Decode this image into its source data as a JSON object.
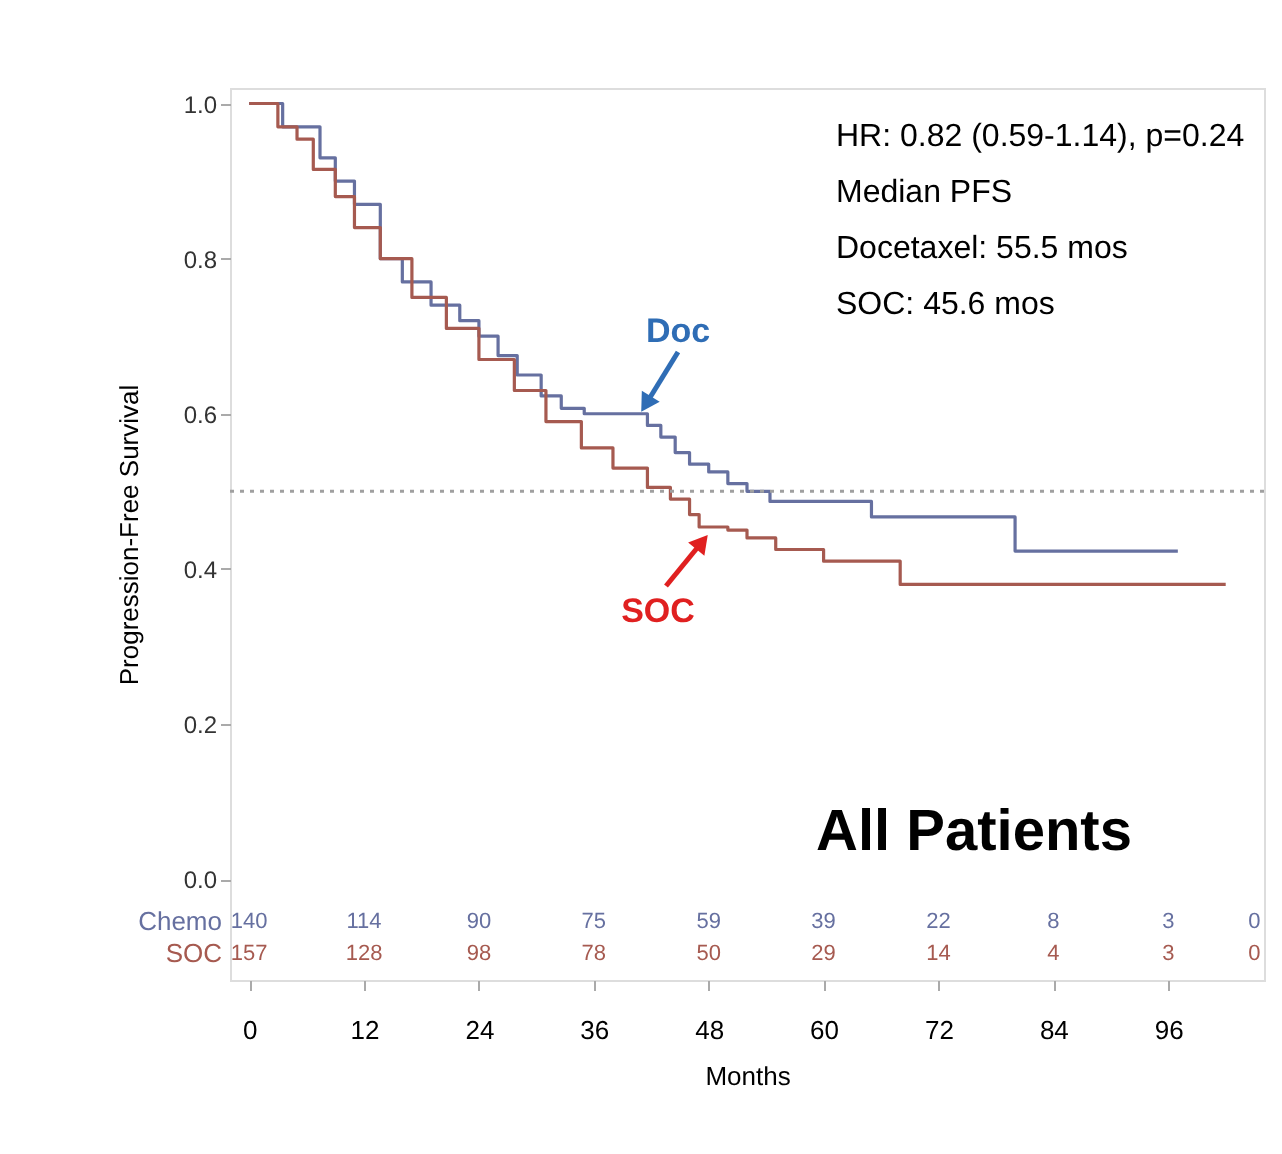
{
  "chart_data": {
    "type": "step",
    "xlabel": "Months",
    "ylabel": "Progression-Free Survival",
    "xlim": [
      -2,
      106
    ],
    "ylim": [
      -0.13,
      1.02
    ],
    "xticks": [
      0,
      12,
      24,
      36,
      48,
      60,
      72,
      84,
      96
    ],
    "yticks": [
      {
        "value": 0,
        "label": "0.0"
      },
      {
        "value": 0.2,
        "label": "0.2"
      },
      {
        "value": 0.4,
        "label": "0.4"
      },
      {
        "value": 0.6,
        "label": "0.6"
      },
      {
        "value": 0.8,
        "label": "0.8"
      },
      {
        "value": 1,
        "label": "1.0"
      }
    ],
    "grid": false,
    "marker": "none",
    "line_style": "solid",
    "series": [
      {
        "name": "Doc",
        "color": "#6670a0",
        "x": [
          0,
          3,
          3.5,
          7.4,
          9,
          11,
          13.7,
          16,
          19,
          22,
          24,
          26,
          28,
          30.5,
          32.6,
          35,
          41.6,
          43,
          44.5,
          46,
          48,
          50,
          52,
          54.4,
          65,
          80,
          97
        ],
        "values": [
          1.0,
          1.0,
          0.97,
          0.93,
          0.9,
          0.87,
          0.8,
          0.77,
          0.74,
          0.72,
          0.7,
          0.675,
          0.65,
          0.623,
          0.607,
          0.6,
          0.585,
          0.57,
          0.55,
          0.535,
          0.525,
          0.51,
          0.5,
          0.487,
          0.467,
          0.423,
          0.423
        ]
      },
      {
        "name": "SOC",
        "color": "#a65a50",
        "x": [
          0,
          2.5,
          3,
          5,
          6.7,
          9,
          11,
          13.7,
          17,
          20.6,
          24,
          27.7,
          31,
          34.7,
          38,
          41.6,
          44,
          46,
          47,
          50,
          52,
          55,
          60,
          68,
          102
        ],
        "values": [
          1.0,
          1.0,
          0.97,
          0.954,
          0.915,
          0.88,
          0.84,
          0.8,
          0.75,
          0.71,
          0.67,
          0.63,
          0.59,
          0.556,
          0.53,
          0.505,
          0.49,
          0.47,
          0.454,
          0.45,
          0.44,
          0.425,
          0.41,
          0.38,
          0.38
        ]
      }
    ],
    "ref_lines": [
      {
        "axis": "y",
        "value": 0.5,
        "color": "#a0a0a0",
        "line_style": "dotted"
      }
    ],
    "annotations": [
      "HR: 0.82 (0.59-1.14), p=0.24",
      "Median PFS",
      "Docetaxel: 55.5 mos",
      "SOC: 45.6 mos",
      "All Patients",
      "Chemo",
      "140",
      "114",
      "90",
      "75",
      "59",
      "39",
      "22",
      "8",
      "3",
      "0",
      "SOC",
      "157",
      "128",
      "98",
      "78",
      "50",
      "29",
      "14",
      "4",
      "3",
      "0"
    ]
  }
}
